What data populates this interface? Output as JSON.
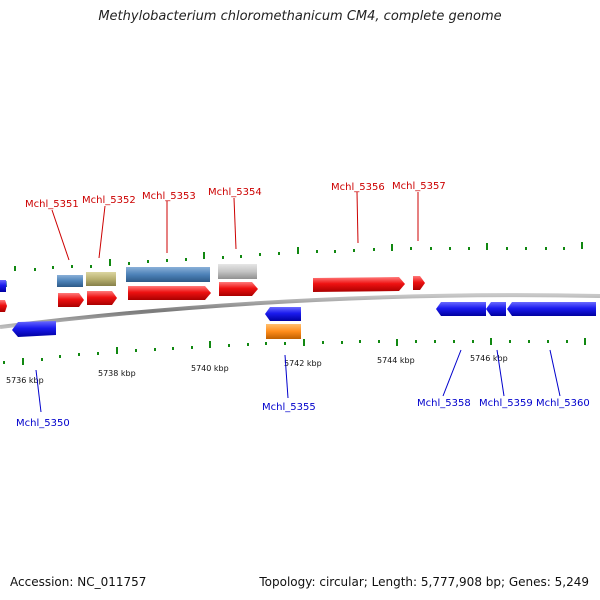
{
  "title": "Methylobacterium chloromethanicum CM4, complete genome",
  "footer": {
    "accession": "Accession: NC_011757",
    "stats": "Topology: circular; Length: 5,777,908 bp; Genes: 5,249"
  },
  "axis_labels": [
    "5736 kbp",
    "5738 kbp",
    "5740 kbp",
    "5742 kbp",
    "5744 kbp",
    "5746 kbp"
  ],
  "genes_plus": [
    {
      "label": "Mchl_5351"
    },
    {
      "label": "Mchl_5352"
    },
    {
      "label": "Mchl_5353"
    },
    {
      "label": "Mchl_5354"
    },
    {
      "label": "Mchl_5356"
    },
    {
      "label": "Mchl_5357"
    }
  ],
  "genes_minus": [
    {
      "label": "Mchl_5350"
    },
    {
      "label": "Mchl_5355"
    },
    {
      "label": "Mchl_5358"
    },
    {
      "label": "Mchl_5359"
    },
    {
      "label": "Mchl_5360"
    }
  ],
  "colors": {
    "plus_strand": "#ee1111",
    "minus_strand": "#1a1aee",
    "backbone": "#888888",
    "tick": "#118811",
    "cog_steelblue": "#4d82b8",
    "cog_khaki": "#b8b070",
    "cog_grey": "#c4c4c4",
    "cog_orange": "#ff8c1a"
  }
}
